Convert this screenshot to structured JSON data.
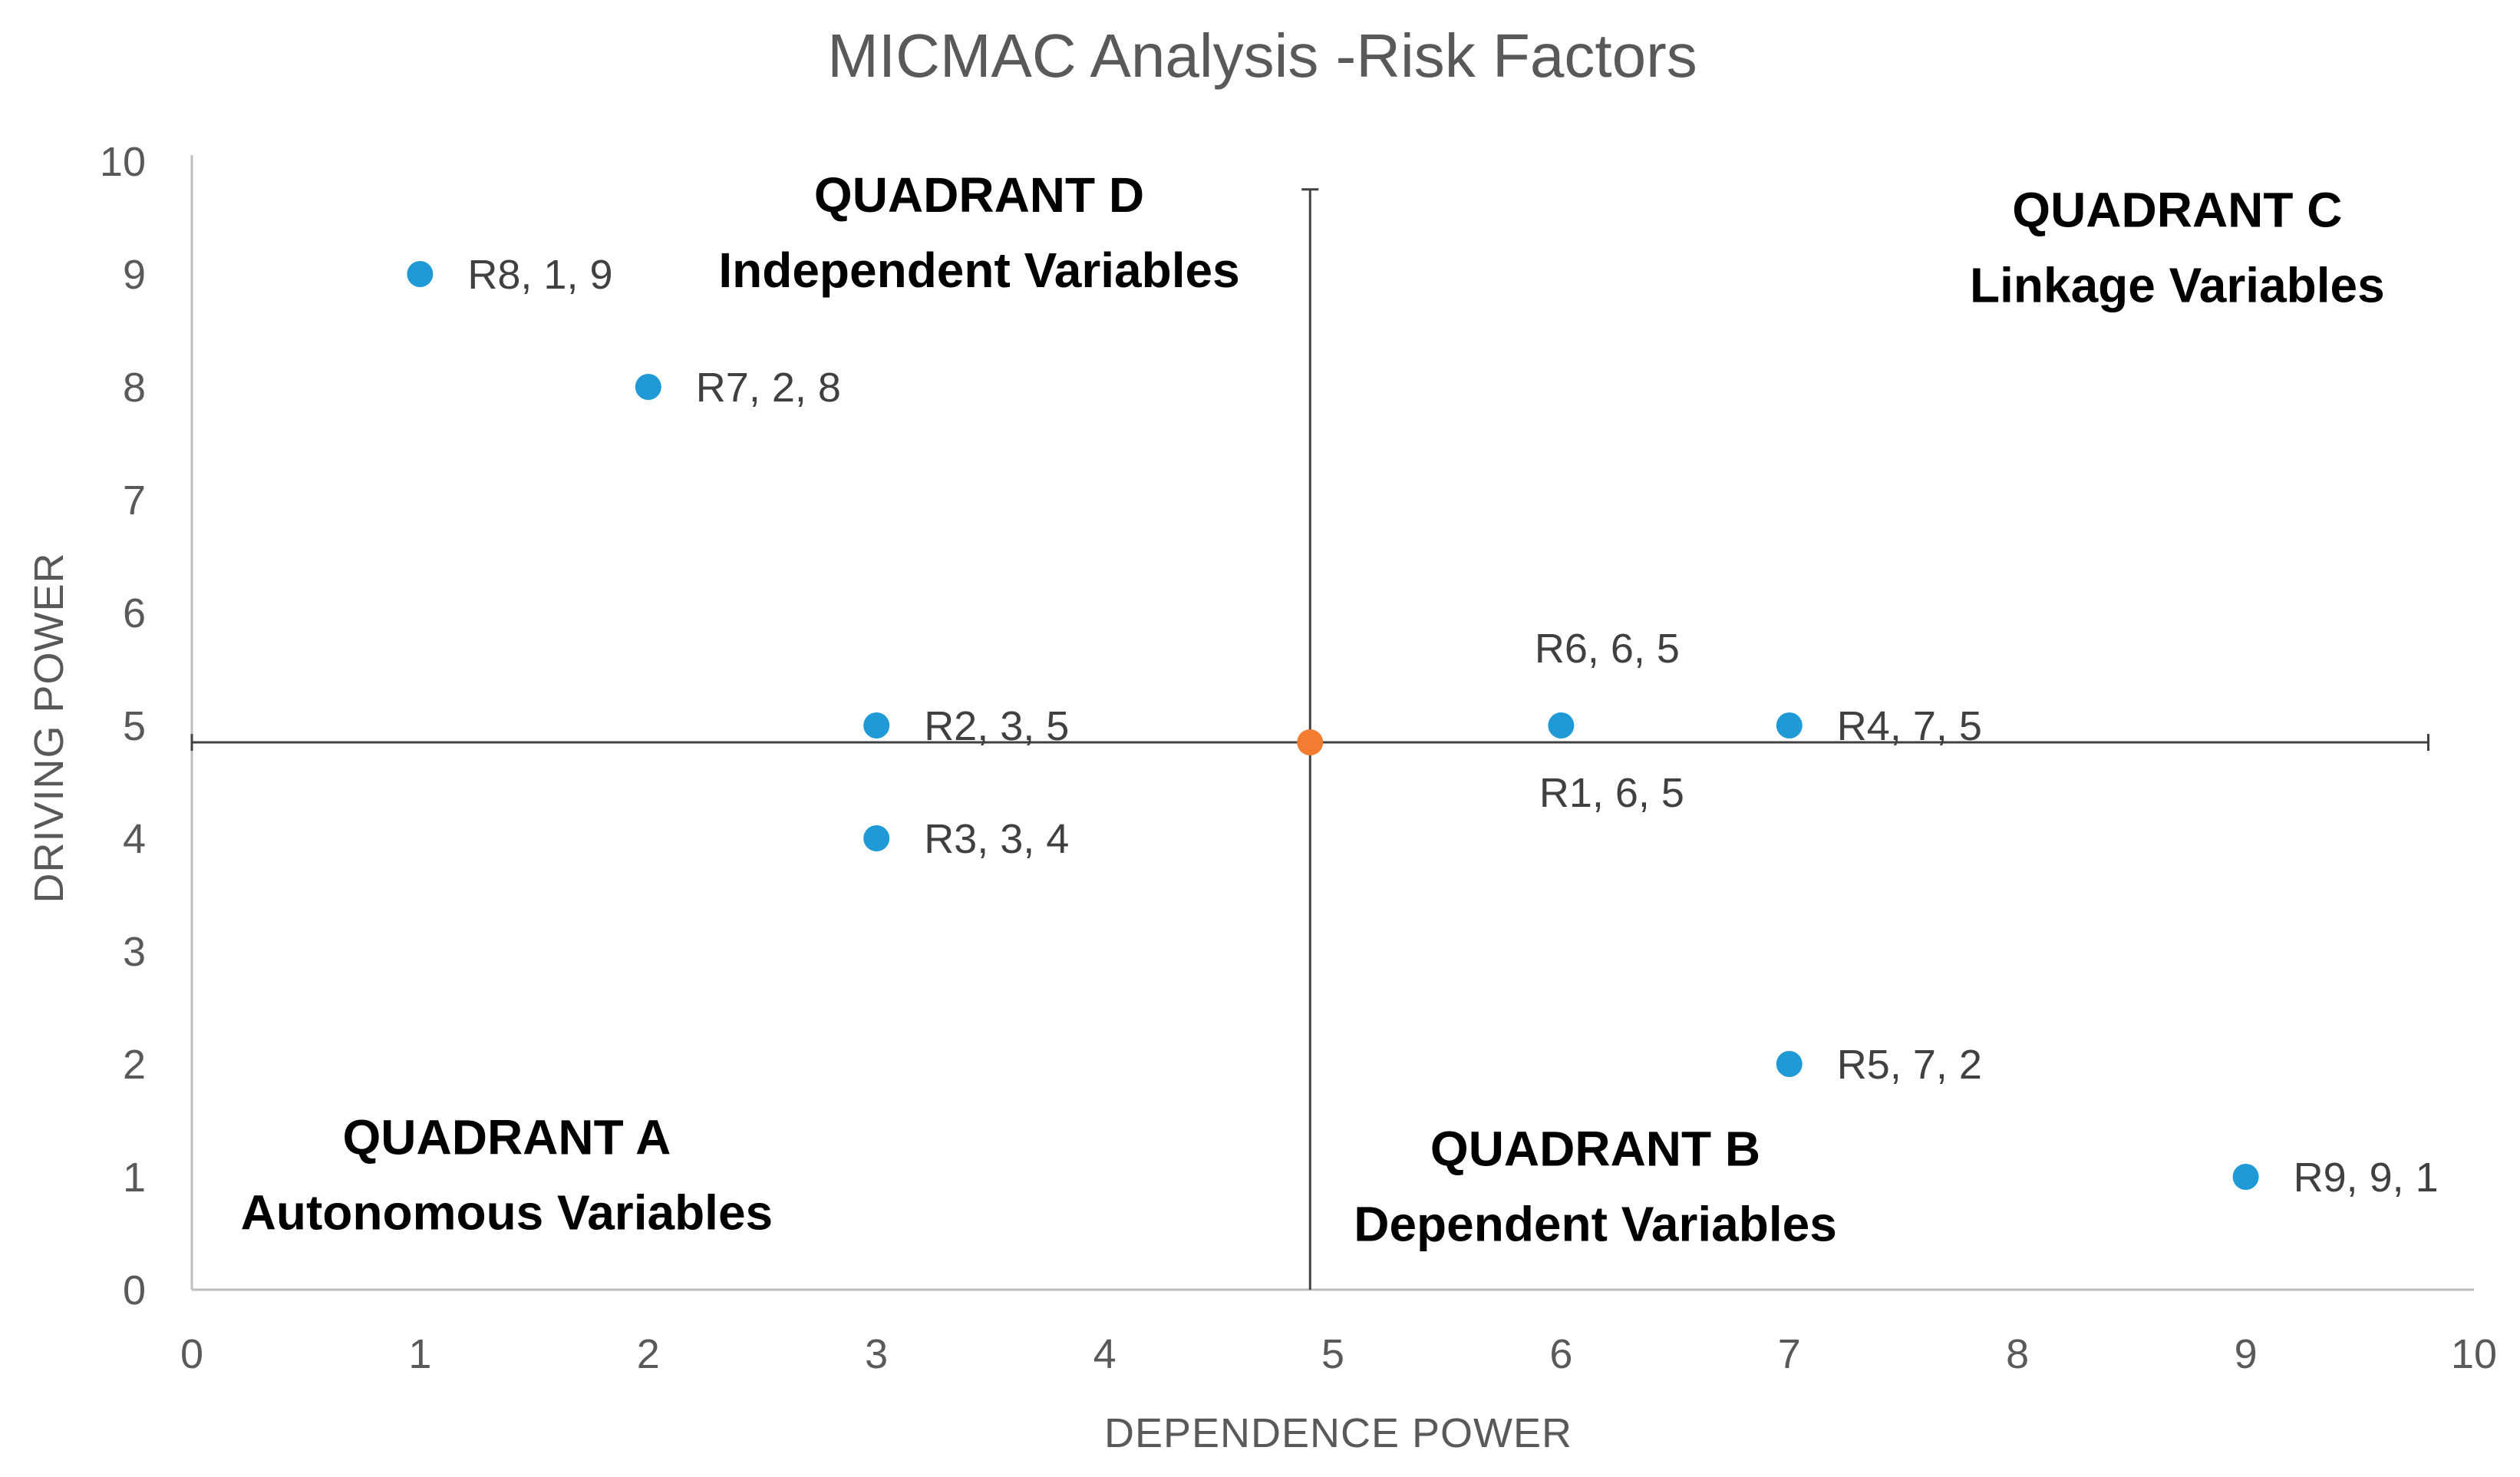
{
  "chart_data": {
    "type": "scatter",
    "title": "MICMAC Analysis -Risk Factors",
    "xlabel": "DEPENDENCE POWER",
    "ylabel": "DRIVING POWER",
    "xlim": [
      0,
      10
    ],
    "ylim": [
      0,
      10
    ],
    "x_ticks": [
      "0",
      "1",
      "2",
      "3",
      "4",
      "5",
      "6",
      "7",
      "8",
      "9",
      "10"
    ],
    "y_ticks": [
      "0",
      "1",
      "2",
      "3",
      "4",
      "5",
      "6",
      "7",
      "8",
      "9",
      "10"
    ],
    "grid": false,
    "divider_point": {
      "x": 4.9,
      "y": 4.85
    },
    "divider_extent": {
      "x_max": 9.8,
      "y_max": 9.75
    },
    "points": [
      {
        "id": "R8",
        "x": 1,
        "y": 9,
        "label": "R8, 1, 9",
        "label_pos": "right"
      },
      {
        "id": "R7",
        "x": 2,
        "y": 8,
        "label": "R7, 2, 8",
        "label_pos": "right"
      },
      {
        "id": "R2",
        "x": 3,
        "y": 5,
        "label": "R2, 3, 5",
        "label_pos": "right"
      },
      {
        "id": "R3",
        "x": 3,
        "y": 4,
        "label": "R3, 3, 4",
        "label_pos": "right"
      },
      {
        "id": "R6",
        "x": 6,
        "y": 5,
        "label": "R6, 6, 5",
        "label_pos": "above"
      },
      {
        "id": "R1",
        "x": 6,
        "y": 5,
        "label": "R1, 6, 5",
        "label_pos": "below"
      },
      {
        "id": "R4",
        "x": 7,
        "y": 5,
        "label": "R4, 7, 5",
        "label_pos": "right"
      },
      {
        "id": "R5",
        "x": 7,
        "y": 2,
        "label": "R5, 7, 2",
        "label_pos": "right"
      },
      {
        "id": "R9",
        "x": 9,
        "y": 1,
        "label": "R9, 9, 1",
        "label_pos": "right"
      }
    ],
    "quadrants": [
      {
        "key": "d",
        "title": "QUADRANT D",
        "subtitle": "Independent Variables",
        "x": 3.45,
        "y": 9.55
      },
      {
        "key": "c",
        "title": "QUADRANT C",
        "subtitle": "Linkage Variables",
        "x": 8.7,
        "y": 9.42
      },
      {
        "key": "a",
        "title": "QUADRANT A",
        "subtitle": "Autonomous Variables",
        "x": 1.38,
        "y": 1.2
      },
      {
        "key": "b",
        "title": "QUADRANT B",
        "subtitle": "Dependent Variables",
        "x": 6.15,
        "y": 1.1
      }
    ],
    "colors": {
      "point": "#1f9ad6",
      "center": "#f47c30",
      "axis": "#bfbfbf",
      "divider": "#404040"
    }
  }
}
